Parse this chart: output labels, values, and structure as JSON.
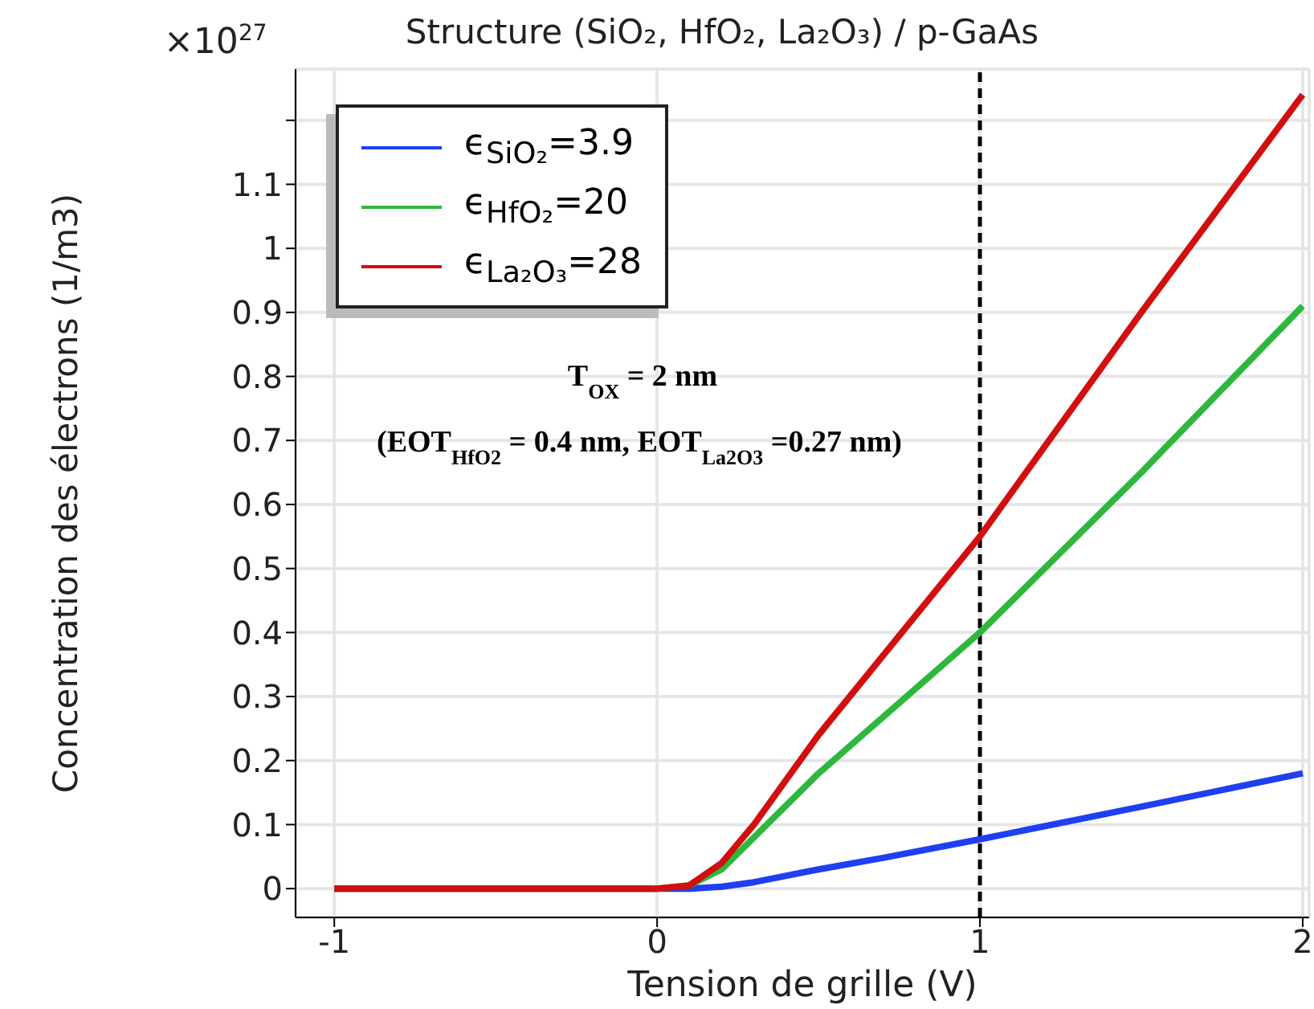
{
  "chart_data": {
    "type": "line",
    "title": "Structure (SiO₂, HfO₂, La₂O₃) / p-GaAs",
    "xlabel": "Tension de grille (V)",
    "ylabel": "Concentration des électrons (1/m3)",
    "series": [
      {
        "name": "ϵ$_{SiO₂}$=3.9",
        "color": "#1f3ff0",
        "x": [
          -1,
          0,
          0.1,
          0.2,
          0.3,
          0.5,
          0.7,
          1,
          1.5,
          2
        ],
        "values": [
          0,
          0,
          0,
          0.003,
          0.01,
          0.03,
          0.048,
          0.077,
          0.128,
          0.18
        ]
      },
      {
        "name": "ϵ$_{HfO₂}$=20",
        "color": "#2db83d",
        "x": [
          -1,
          0,
          0.1,
          0.2,
          0.3,
          0.5,
          1,
          1.5,
          2
        ],
        "values": [
          0,
          0,
          0.005,
          0.03,
          0.08,
          0.18,
          0.4,
          0.65,
          0.91
        ]
      },
      {
        "name": "ϵ$_{La₂O₃}$=28",
        "color": "#d10f0f",
        "x": [
          -1,
          0,
          0.1,
          0.2,
          0.3,
          0.5,
          1,
          1.5,
          2
        ],
        "values": [
          0,
          0,
          0.005,
          0.04,
          0.1,
          0.24,
          0.55,
          0.9,
          1.24
        ]
      }
    ],
    "xlim": [
      -1.12,
      2.02
    ],
    "xticks": [
      -1,
      0,
      1,
      2
    ],
    "ylim": [
      -0.045,
      1.28
    ],
    "yticks": [
      0,
      0.1,
      0.2,
      0.3,
      0.4,
      0.5,
      0.6,
      0.7,
      0.8,
      0.9,
      1,
      1.1,
      {
        "value": 1.2,
        "label": null
      }
    ],
    "ref_lines": [
      {
        "axis": "x",
        "value": 1,
        "color": "#000000",
        "line_style": "dashed"
      }
    ],
    "annotations": [
      "×10$^{27}$",
      "T$_{OX}$ = 2 nm",
      "(EOT$_{HfO2}$ = 0.4 nm, EOT$_{La2O3}$ =0.27 nm)"
    ],
    "grid": true,
    "legend": "top left",
    "line_style": "solid",
    "marker": "none"
  }
}
